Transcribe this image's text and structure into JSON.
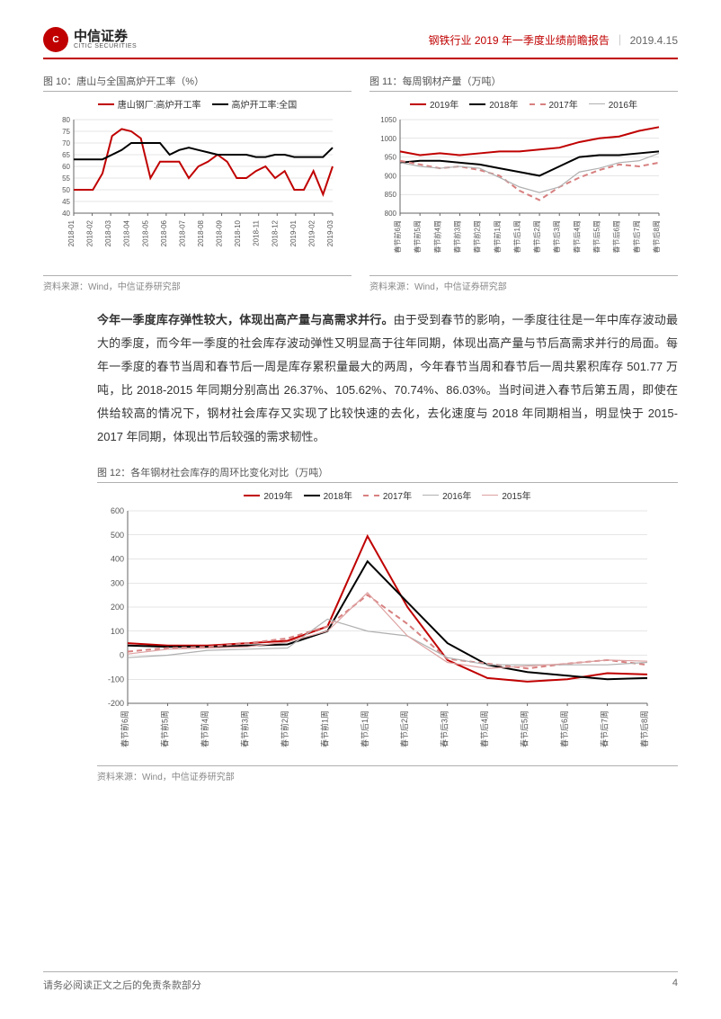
{
  "header": {
    "logo_cn": "中信证券",
    "logo_en": "CITIC SECURITIES",
    "title": "钢铁行业 2019 年一季度业绩前瞻报告",
    "date": "2019.4.15"
  },
  "chart10": {
    "title": "图 10：唐山与全国高炉开工率（%）",
    "type": "line",
    "legend": [
      {
        "label": "唐山钢厂:高炉开工率",
        "color": "#c00000",
        "dash": "none",
        "width": 2
      },
      {
        "label": "高炉开工率:全国",
        "color": "#000000",
        "dash": "none",
        "width": 2
      }
    ],
    "x_labels": [
      "2018-01",
      "2018-02",
      "2018-03",
      "2018-04",
      "2018-05",
      "2018-06",
      "2018-07",
      "2018-08",
      "2018-09",
      "2018-10",
      "2018-11",
      "2018-12",
      "2019-01",
      "2019-02",
      "2019-03"
    ],
    "ylim": [
      40,
      80
    ],
    "ytick_step": 5,
    "series": {
      "tangshan": [
        50,
        50,
        50,
        57,
        73,
        76,
        75,
        72,
        55,
        62,
        62,
        62,
        55,
        60,
        62,
        65,
        62,
        55,
        55,
        58,
        60,
        55,
        58,
        50,
        50,
        58,
        48,
        60
      ],
      "national": [
        63,
        63,
        63,
        63,
        65,
        67,
        70,
        70,
        70,
        70,
        65,
        67,
        68,
        67,
        66,
        65,
        65,
        65,
        65,
        64,
        64,
        65,
        65,
        64,
        64,
        64,
        64,
        68
      ]
    },
    "background_color": "#ffffff",
    "grid_color": "#cccccc",
    "axis_color": "#666666",
    "label_fontsize": 8,
    "x_label_rotation": -90,
    "source": "资料来源：Wind，中信证券研究部"
  },
  "chart11": {
    "title": "图 11：每周钢材产量（万吨）",
    "type": "line",
    "legend": [
      {
        "label": "2019年",
        "color": "#c00000",
        "dash": "none",
        "width": 2
      },
      {
        "label": "2018年",
        "color": "#000000",
        "dash": "none",
        "width": 2
      },
      {
        "label": "2017年",
        "color": "#d88080",
        "dash": "6,4",
        "width": 2
      },
      {
        "label": "2016年",
        "color": "#b0b0b0",
        "dash": "none",
        "width": 1.2
      }
    ],
    "x_labels": [
      "春节前6周",
      "春节前5周",
      "春节前4周",
      "春节前3周",
      "春节前2周",
      "春节前1周",
      "春节后1周",
      "春节后2周",
      "春节后3周",
      "春节后4周",
      "春节后5周",
      "春节后6周",
      "春节后7周",
      "春节后8周"
    ],
    "ylim": [
      800,
      1050
    ],
    "ytick_step": 50,
    "series": {
      "y2019": [
        965,
        955,
        960,
        955,
        960,
        965,
        965,
        970,
        975,
        990,
        1000,
        1005,
        1020,
        1030
      ],
      "y2018": [
        935,
        940,
        940,
        935,
        930,
        920,
        910,
        900,
        925,
        950,
        955,
        955,
        960,
        965
      ],
      "y2017": [
        940,
        930,
        920,
        925,
        915,
        900,
        860,
        835,
        870,
        895,
        915,
        930,
        925,
        935
      ],
      "y2016": [
        935,
        925,
        920,
        925,
        920,
        895,
        870,
        855,
        870,
        910,
        920,
        935,
        940,
        960
      ]
    },
    "background_color": "#ffffff",
    "grid_color": "#cccccc",
    "axis_color": "#666666",
    "label_fontsize": 8,
    "x_label_rotation": -90,
    "source": "资料来源：Wind，中信证券研究部"
  },
  "paragraph": {
    "bold_lead": "今年一季度库存弹性较大，体现出高产量与高需求并行。",
    "text": "由于受到春节的影响，一季度往往是一年中库存波动最大的季度，而今年一季度的社会库存波动弹性又明显高于往年同期，体现出高产量与节后高需求并行的局面。每年一季度的春节当周和春节后一周是库存累积量最大的两周，今年春节当周和春节后一周共累积库存 501.77 万吨，比 2018-2015 年同期分别高出 26.37%、105.62%、70.74%、86.03%。当时间进入春节后第五周，即使在供给较高的情况下，钢材社会库存又实现了比较快速的去化，去化速度与 2018 年同期相当，明显快于 2015-2017 年同期，体现出节后较强的需求韧性。"
  },
  "chart12": {
    "title": "图 12：各年钢材社会库存的周环比变化对比（万吨）",
    "type": "line",
    "legend": [
      {
        "label": "2019年",
        "color": "#c00000",
        "dash": "none",
        "width": 2
      },
      {
        "label": "2018年",
        "color": "#000000",
        "dash": "none",
        "width": 2
      },
      {
        "label": "2017年",
        "color": "#d88080",
        "dash": "6,4",
        "width": 2
      },
      {
        "label": "2016年",
        "color": "#b0b0b0",
        "dash": "none",
        "width": 1.2
      },
      {
        "label": "2015年",
        "color": "#dda0a0",
        "dash": "none",
        "width": 1.2
      }
    ],
    "x_labels": [
      "春节前6周",
      "春节前5周",
      "春节前4周",
      "春节前3周",
      "春节前2周",
      "春节前1周",
      "春节后1周",
      "春节后2周",
      "春节后3周",
      "春节后4周",
      "春节后5周",
      "春节后6周",
      "春节后7周",
      "春节后8周"
    ],
    "ylim": [
      -200,
      600
    ],
    "ytick_step": 100,
    "series": {
      "y2019": [
        50,
        40,
        40,
        50,
        60,
        120,
        495,
        200,
        -20,
        -95,
        -110,
        -100,
        -75,
        -80
      ],
      "y2018": [
        40,
        35,
        35,
        40,
        45,
        100,
        390,
        220,
        50,
        -40,
        -70,
        -85,
        -100,
        -95
      ],
      "y2017": [
        15,
        30,
        35,
        50,
        70,
        120,
        250,
        130,
        -15,
        -35,
        -55,
        -35,
        -20,
        -40
      ],
      "y2016": [
        -10,
        0,
        20,
        25,
        30,
        150,
        100,
        80,
        -10,
        -40,
        -40,
        -40,
        -40,
        -30
      ],
      "y2015": [
        5,
        25,
        30,
        35,
        55,
        100,
        260,
        80,
        -30,
        -55,
        -45,
        -35,
        -20,
        -25
      ]
    },
    "background_color": "#ffffff",
    "grid_color": "#cccccc",
    "axis_color": "#666666",
    "label_fontsize": 9,
    "x_label_rotation": -90,
    "source": "资料来源：Wind，中信证券研究部"
  },
  "footer": {
    "disclaimer": "请务必阅读正文之后的免责条款部分",
    "page": "4"
  }
}
